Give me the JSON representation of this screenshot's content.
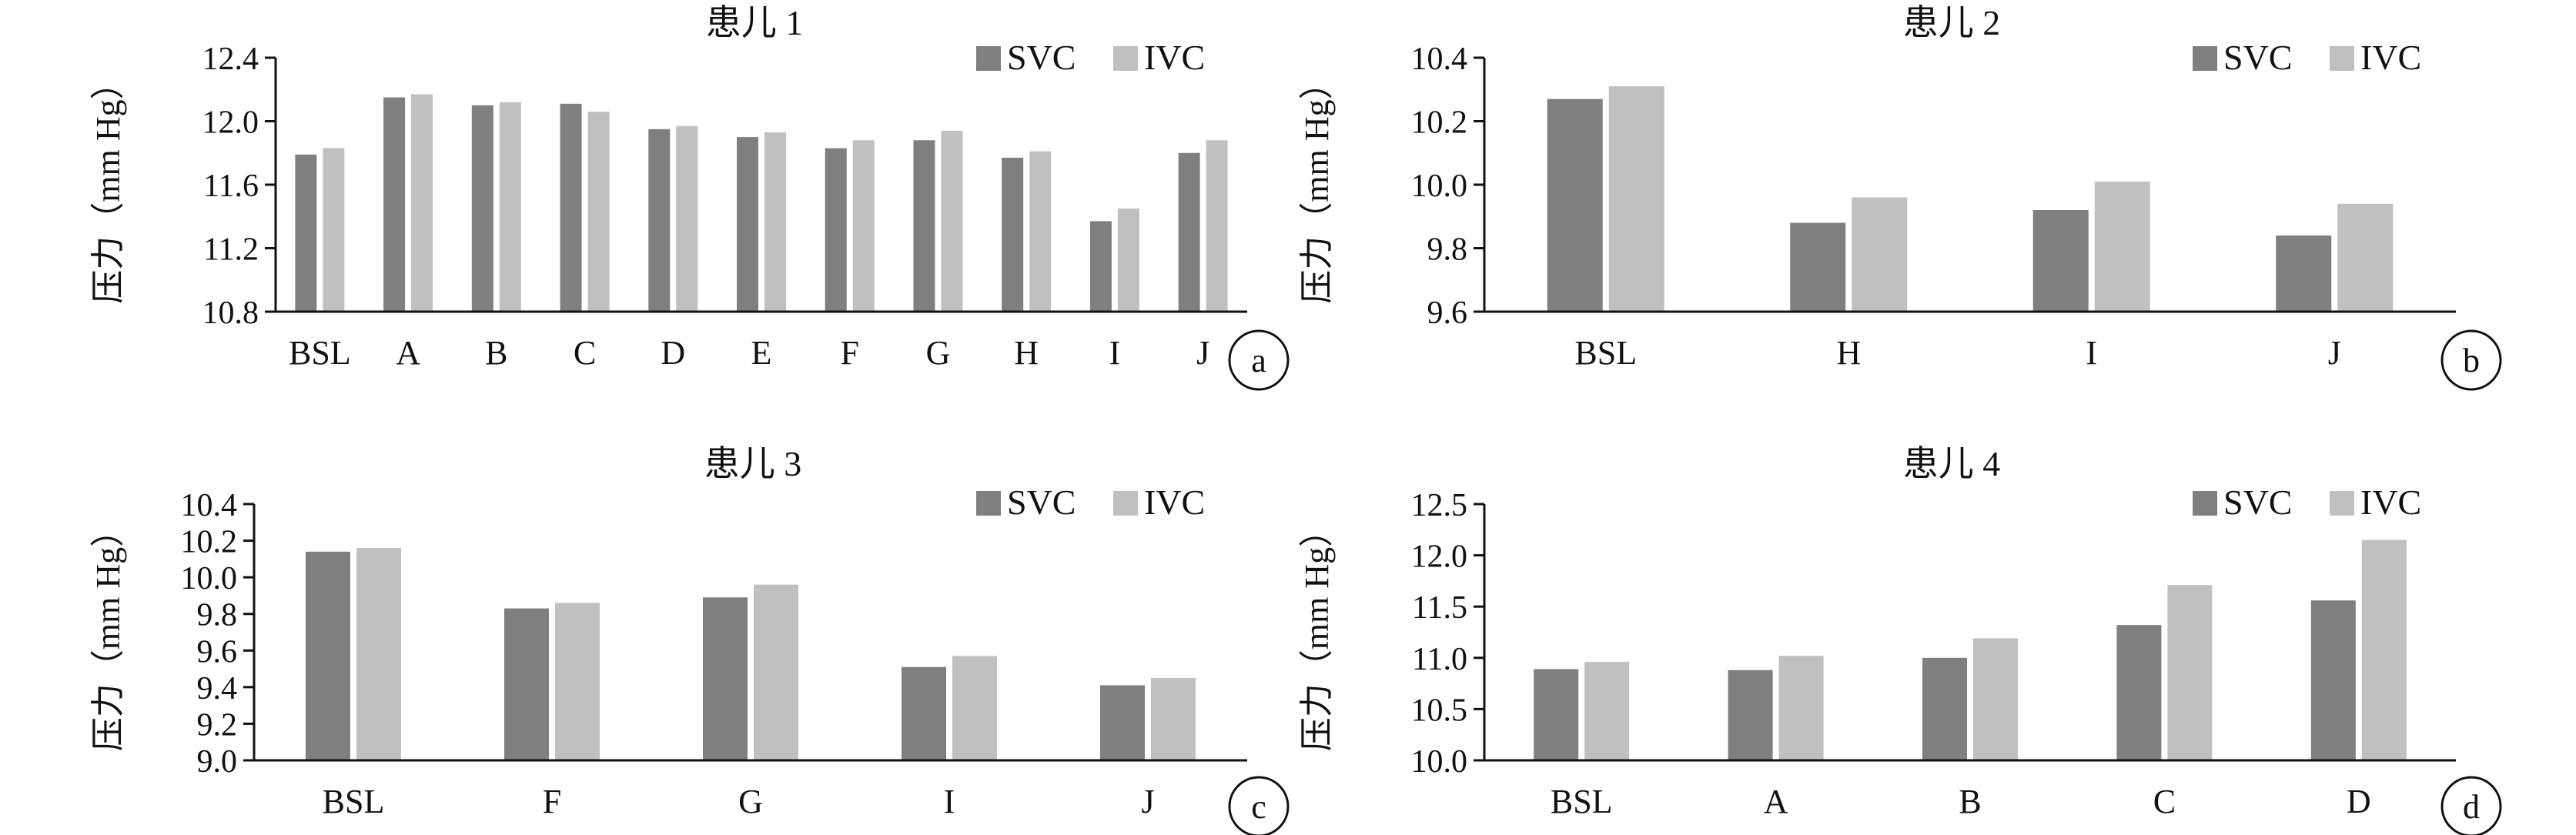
{
  "colors": {
    "SVC": "#7f7f7f",
    "IVC": "#c0c0c0",
    "axis": "#111111"
  },
  "chart_data": [
    {
      "type": "bar",
      "panel_label": "a",
      "title": "患儿  1",
      "ylabel": "压力（mm Hg）",
      "ylim": [
        10.8,
        12.4
      ],
      "yticks": [
        "10.8",
        "11.2",
        "11.6",
        "12.0",
        "12.4"
      ],
      "categories": [
        "BSL",
        "A",
        "B",
        "C",
        "D",
        "E",
        "F",
        "G",
        "H",
        "I",
        "J"
      ],
      "series": [
        {
          "name": "SVC",
          "values": [
            11.79,
            12.15,
            12.1,
            12.11,
            11.95,
            11.9,
            11.83,
            11.88,
            11.77,
            11.37,
            11.8
          ]
        },
        {
          "name": "IVC",
          "values": [
            11.83,
            12.17,
            12.12,
            12.06,
            11.97,
            11.93,
            11.88,
            11.94,
            11.81,
            11.45,
            11.88
          ]
        }
      ],
      "legend_position": "top-right"
    },
    {
      "type": "bar",
      "panel_label": "b",
      "title": "患儿 2",
      "ylabel": "压力（mm Hg）",
      "ylim": [
        9.6,
        10.4
      ],
      "yticks": [
        "9.6",
        "9.8",
        "10.0",
        "10.2",
        "10.4"
      ],
      "categories": [
        "BSL",
        "H",
        "I",
        "J"
      ],
      "series": [
        {
          "name": "SVC",
          "values": [
            10.27,
            9.88,
            9.92,
            9.84
          ]
        },
        {
          "name": "IVC",
          "values": [
            10.31,
            9.96,
            10.01,
            9.94
          ]
        }
      ],
      "legend_position": "top-right"
    },
    {
      "type": "bar",
      "panel_label": "c",
      "title": "患儿  3",
      "ylabel": "压力（mm Hg）",
      "ylim": [
        9.0,
        10.4
      ],
      "yticks": [
        "9.0",
        "9.2",
        "9.4",
        "9.6",
        "9.8",
        "10.0",
        "10.2",
        "10.4"
      ],
      "categories": [
        "BSL",
        "F",
        "G",
        "I",
        "J"
      ],
      "series": [
        {
          "name": "SVC",
          "values": [
            10.14,
            9.83,
            9.89,
            9.51,
            9.41
          ]
        },
        {
          "name": "IVC",
          "values": [
            10.16,
            9.86,
            9.96,
            9.57,
            9.45
          ]
        }
      ],
      "legend_position": "top-right"
    },
    {
      "type": "bar",
      "panel_label": "d",
      "title": "患儿 4",
      "ylabel": "压力（mm Hg）",
      "ylim": [
        10.0,
        12.5
      ],
      "yticks": [
        "10.0",
        "10.5",
        "11.0",
        "11.5",
        "12.0",
        "12.5"
      ],
      "categories": [
        "BSL",
        "A",
        "B",
        "C",
        "D"
      ],
      "series": [
        {
          "name": "SVC",
          "values": [
            10.89,
            10.88,
            11.0,
            11.32,
            11.56
          ]
        },
        {
          "name": "IVC",
          "values": [
            10.96,
            11.02,
            11.19,
            11.71,
            12.15
          ]
        }
      ],
      "legend_position": "top-right"
    }
  ]
}
